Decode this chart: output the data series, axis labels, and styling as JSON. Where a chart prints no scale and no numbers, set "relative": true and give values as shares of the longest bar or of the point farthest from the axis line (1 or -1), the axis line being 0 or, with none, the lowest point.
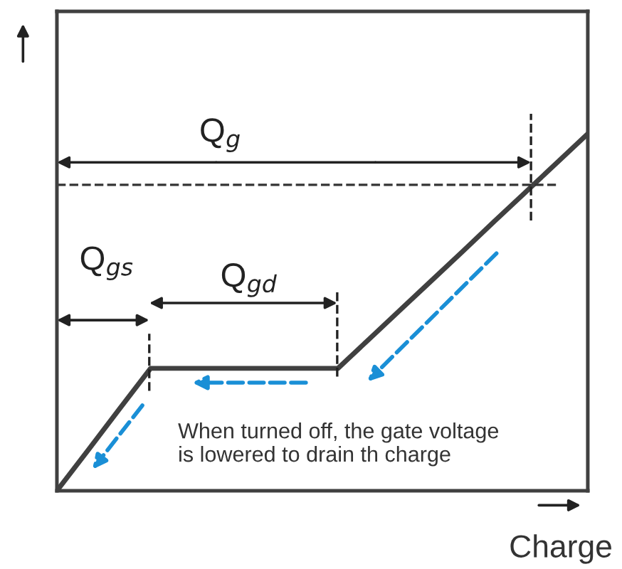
{
  "chart_data": {
    "type": "line",
    "relative": true,
    "categories": [
      null,
      null,
      null,
      null,
      null,
      null,
      null,
      null,
      null,
      null,
      null,
      null,
      null,
      null,
      null,
      null,
      null,
      null
    ],
    "series": [
      {
        "color": "#404040",
        "values": [
          0,
          0.114,
          0.229,
          0.343,
          0.343,
          0.343,
          0.343,
          0.343,
          0.343,
          0.343,
          0.425,
          0.507,
          0.589,
          0.671,
          0.754,
          0.836,
          0.918,
          1
        ]
      }
    ],
    "xlabel": "Charge",
    "legend": false,
    "marker": "none",
    "line_style": "solid",
    "ref_lines": [
      {
        "axis": "y",
        "value": 0.857,
        "color": "#333333",
        "line_style": "dashed"
      }
    ],
    "annotations": [
      "Q$_{g}$",
      "Q$_{gs}$",
      "Q$_{gd}$",
      "When turned off, the gate voltage\nis lowered to drain th charge"
    ]
  }
}
